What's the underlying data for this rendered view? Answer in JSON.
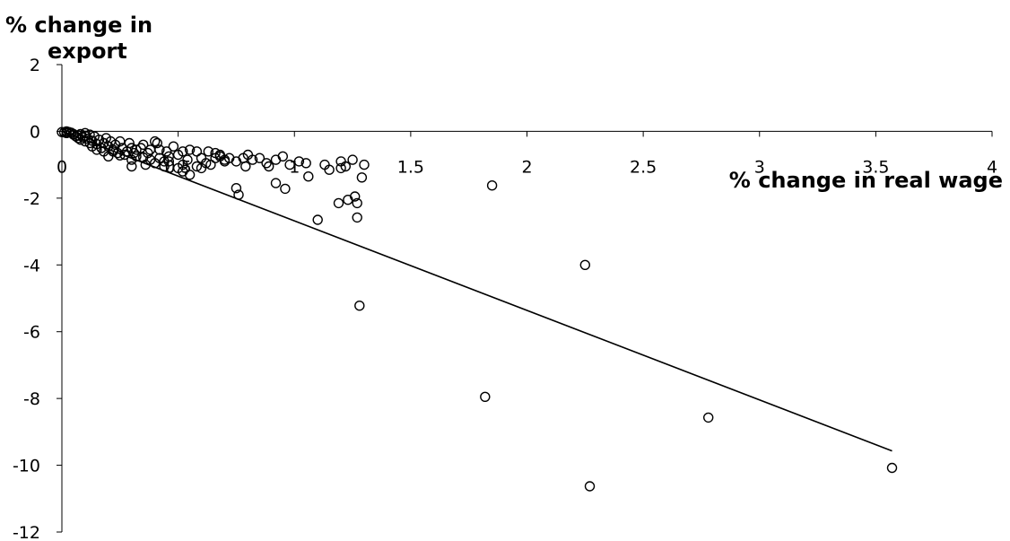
{
  "chart_data": {
    "type": "scatter",
    "title": "",
    "ylabel_line1": "% change in",
    "ylabel_line2": "export",
    "xlabel": "% change in real wage",
    "xlim": [
      0,
      4
    ],
    "ylim": [
      -12,
      2
    ],
    "x_ticks": [
      "0",
      "0.5",
      "1",
      "1.5",
      "2",
      "2.5",
      "3",
      "3.5",
      "4"
    ],
    "y_ticks": [
      "2",
      "0",
      "-2",
      "-4",
      "-6",
      "-8",
      "-10",
      "-12"
    ],
    "grid": false,
    "legend": "none",
    "trendline": {
      "x": [
        0,
        3.57
      ],
      "y": [
        0,
        -9.57
      ]
    },
    "points": [
      [
        0.0,
        -0.02
      ],
      [
        0.01,
        -0.03
      ],
      [
        0.02,
        0.0
      ],
      [
        0.02,
        -0.05
      ],
      [
        0.03,
        -0.02
      ],
      [
        0.04,
        -0.04
      ],
      [
        0.05,
        -0.08
      ],
      [
        0.05,
        -0.1
      ],
      [
        0.06,
        -0.15
      ],
      [
        0.07,
        -0.12
      ],
      [
        0.07,
        -0.2
      ],
      [
        0.08,
        -0.08
      ],
      [
        0.08,
        -0.25
      ],
      [
        0.09,
        -0.18
      ],
      [
        0.1,
        -0.05
      ],
      [
        0.1,
        -0.3
      ],
      [
        0.1,
        -0.13
      ],
      [
        0.11,
        -0.22
      ],
      [
        0.12,
        -0.1
      ],
      [
        0.12,
        -0.35
      ],
      [
        0.13,
        -0.28
      ],
      [
        0.13,
        -0.45
      ],
      [
        0.14,
        -0.15
      ],
      [
        0.15,
        -0.38
      ],
      [
        0.15,
        -0.55
      ],
      [
        0.16,
        -0.25
      ],
      [
        0.17,
        -0.5
      ],
      [
        0.18,
        -0.35
      ],
      [
        0.18,
        -0.6
      ],
      [
        0.19,
        -0.2
      ],
      [
        0.2,
        -0.45
      ],
      [
        0.2,
        -0.75
      ],
      [
        0.21,
        -0.3
      ],
      [
        0.22,
        -0.55
      ],
      [
        0.23,
        -0.4
      ],
      [
        0.24,
        -0.65
      ],
      [
        0.25,
        -0.3
      ],
      [
        0.26,
        -0.5
      ],
      [
        0.27,
        -0.7
      ],
      [
        0.28,
        -0.6
      ],
      [
        0.29,
        -0.35
      ],
      [
        0.3,
        -0.5
      ],
      [
        0.31,
        -0.65
      ],
      [
        0.32,
        -0.75
      ],
      [
        0.22,
        -0.6
      ],
      [
        0.25,
        -0.72
      ],
      [
        0.3,
        -0.85
      ],
      [
        0.32,
        -0.55
      ],
      [
        0.34,
        -0.5
      ],
      [
        0.35,
        -0.78
      ],
      [
        0.36,
        -1.0
      ],
      [
        0.37,
        -0.65
      ],
      [
        0.38,
        -0.85
      ],
      [
        0.4,
        -0.3
      ],
      [
        0.4,
        -0.95
      ],
      [
        0.42,
        -0.8
      ],
      [
        0.42,
        -0.55
      ],
      [
        0.44,
        -0.9
      ],
      [
        0.45,
        -0.6
      ],
      [
        0.46,
        -0.75
      ],
      [
        0.3,
        -1.05
      ],
      [
        0.35,
        -0.4
      ],
      [
        0.38,
        -0.55
      ],
      [
        0.41,
        -0.35
      ],
      [
        0.44,
        -1.05
      ],
      [
        0.46,
        -0.9
      ],
      [
        0.48,
        -0.45
      ],
      [
        0.5,
        -0.7
      ],
      [
        0.52,
        -0.6
      ],
      [
        0.5,
        -1.1
      ],
      [
        0.52,
        -1.0
      ],
      [
        0.54,
        -0.85
      ],
      [
        0.55,
        -0.55
      ],
      [
        0.58,
        -0.6
      ],
      [
        0.6,
        -0.8
      ],
      [
        0.62,
        -0.95
      ],
      [
        0.63,
        -0.6
      ],
      [
        0.66,
        -0.65
      ],
      [
        0.68,
        -0.7
      ],
      [
        0.72,
        -0.8
      ],
      [
        0.7,
        -0.9
      ],
      [
        0.75,
        -0.9
      ],
      [
        0.78,
        -0.8
      ],
      [
        0.52,
        -1.2
      ],
      [
        0.55,
        -1.3
      ],
      [
        0.58,
        -1.05
      ],
      [
        0.6,
        -1.1
      ],
      [
        0.64,
        -1.0
      ],
      [
        0.66,
        -0.8
      ],
      [
        0.68,
        -0.75
      ],
      [
        0.7,
        -0.85
      ],
      [
        0.8,
        -0.7
      ],
      [
        0.82,
        -0.85
      ],
      [
        0.85,
        -0.8
      ],
      [
        0.88,
        -0.95
      ],
      [
        0.92,
        -0.85
      ],
      [
        0.95,
        -0.75
      ],
      [
        0.98,
        -1.0
      ],
      [
        1.02,
        -0.9
      ],
      [
        1.05,
        -0.95
      ],
      [
        1.15,
        -1.15
      ],
      [
        1.2,
        -1.1
      ],
      [
        1.2,
        -0.9
      ],
      [
        1.22,
        -1.05
      ],
      [
        1.25,
        -0.85
      ],
      [
        1.3,
        -1.0
      ],
      [
        0.75,
        -1.7
      ],
      [
        0.76,
        -1.9
      ],
      [
        0.79,
        -1.05
      ],
      [
        0.89,
        -1.05
      ],
      [
        0.92,
        -1.55
      ],
      [
        0.96,
        -1.72
      ],
      [
        1.06,
        -1.35
      ],
      [
        1.1,
        -2.65
      ],
      [
        1.13,
        -1.0
      ],
      [
        1.19,
        -2.15
      ],
      [
        1.23,
        -2.05
      ],
      [
        1.27,
        -2.15
      ],
      [
        1.27,
        -2.58
      ],
      [
        1.26,
        -1.95
      ],
      [
        1.29,
        -1.38
      ],
      [
        1.82,
        -7.95
      ],
      [
        1.85,
        -1.62
      ],
      [
        2.25,
        -4.0
      ],
      [
        2.27,
        -10.63
      ],
      [
        2.78,
        -8.57
      ],
      [
        3.57,
        -10.08
      ],
      [
        1.28,
        -5.22
      ]
    ]
  }
}
